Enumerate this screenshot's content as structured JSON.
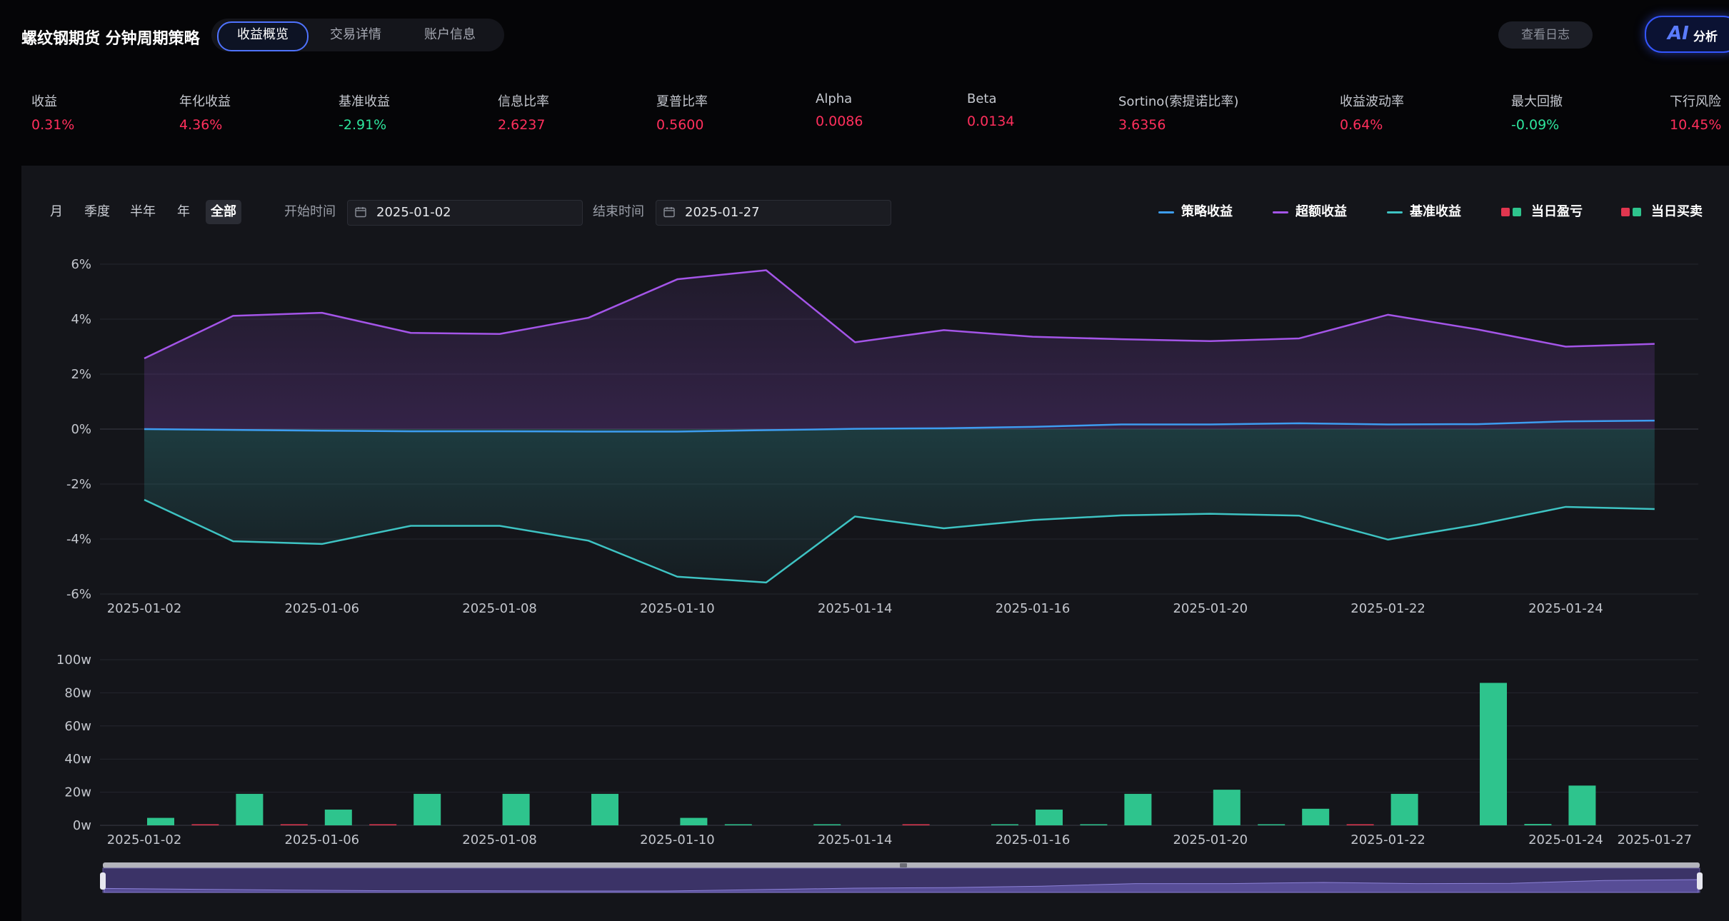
{
  "header": {
    "title": "螺纹钢期货 分钟周期策略",
    "tabs": [
      {
        "label": "收益概览",
        "active": true
      },
      {
        "label": "交易详情",
        "active": false
      },
      {
        "label": "账户信息",
        "active": false
      }
    ],
    "log_button": "查看日志",
    "ai_button": {
      "mark": "AI",
      "label": "分析"
    }
  },
  "colors": {
    "positive": "#ff2f5c",
    "negative": "#2ee59d",
    "strategy": "#3d9df0",
    "excess": "#a455e8",
    "benchmark": "#3ec3c3",
    "bar_profit": "#2ec48d",
    "bar_loss": "#e0364f"
  },
  "metrics": [
    {
      "label": "收益",
      "value": "0.31%",
      "tone": "positive"
    },
    {
      "label": "年化收益",
      "value": "4.36%",
      "tone": "positive"
    },
    {
      "label": "基准收益",
      "value": "-2.91%",
      "tone": "negative"
    },
    {
      "label": "信息比率",
      "value": "2.6237",
      "tone": "positive"
    },
    {
      "label": "夏普比率",
      "value": "0.5600",
      "tone": "positive"
    },
    {
      "label": "Alpha",
      "value": "0.0086",
      "tone": "positive"
    },
    {
      "label": "Beta",
      "value": "0.0134",
      "tone": "positive"
    },
    {
      "label": "Sortino(索提诺比率)",
      "value": "3.6356",
      "tone": "positive"
    },
    {
      "label": "收益波动率",
      "value": "0.64%",
      "tone": "positive"
    },
    {
      "label": "最大回撤",
      "value": "-0.09%",
      "tone": "negative"
    },
    {
      "label": "下行风险",
      "value": "10.45%",
      "tone": "positive"
    }
  ],
  "filters": {
    "periods": [
      {
        "label": "月",
        "active": false
      },
      {
        "label": "季度",
        "active": false
      },
      {
        "label": "半年",
        "active": false
      },
      {
        "label": "年",
        "active": false
      },
      {
        "label": "全部",
        "active": true
      }
    ],
    "start_label": "开始时间",
    "start_value": "2025-01-02",
    "end_label": "结束时间",
    "end_value": "2025-01-27"
  },
  "legend": {
    "strategy": "策略收益",
    "excess": "超额收益",
    "benchmark": "基准收益",
    "daily_pnl": "当日盈亏",
    "daily_trade": "当日买卖"
  },
  "chart_data": [
    {
      "type": "line",
      "x": [
        "2025-01-02",
        "2025-01-03",
        "2025-01-06",
        "2025-01-07",
        "2025-01-08",
        "2025-01-09",
        "2025-01-10",
        "2025-01-13",
        "2025-01-14",
        "2025-01-15",
        "2025-01-16",
        "2025-01-17",
        "2025-01-20",
        "2025-01-21",
        "2025-01-22",
        "2025-01-23",
        "2025-01-24",
        "2025-01-27"
      ],
      "xticks": [
        "2025-01-02",
        "2025-01-06",
        "2025-01-08",
        "2025-01-10",
        "2025-01-14",
        "2025-01-16",
        "2025-01-20",
        "2025-01-22",
        "2025-01-24"
      ],
      "yticks": [
        "-6%",
        "-4%",
        "-2%",
        "0%",
        "2%",
        "4%",
        "6%"
      ],
      "ylim": [
        -6,
        6
      ],
      "series": [
        {
          "key": "strategy",
          "values": [
            0.0,
            -0.03,
            -0.06,
            -0.08,
            -0.08,
            -0.09,
            -0.09,
            -0.04,
            0.01,
            0.03,
            0.08,
            0.17,
            0.17,
            0.21,
            0.17,
            0.18,
            0.28,
            0.31
          ]
        },
        {
          "key": "excess",
          "values": [
            2.57,
            4.12,
            4.23,
            3.5,
            3.46,
            4.05,
            5.45,
            5.78,
            3.16,
            3.6,
            3.36,
            3.27,
            3.2,
            3.3,
            4.16,
            3.63,
            3.0,
            3.1
          ]
        },
        {
          "key": "benchmark",
          "values": [
            -2.57,
            -4.08,
            -4.18,
            -3.52,
            -3.52,
            -4.06,
            -5.37,
            -5.58,
            -3.18,
            -3.61,
            -3.31,
            -3.14,
            -3.08,
            -3.15,
            -4.02,
            -3.48,
            -2.83,
            -2.91
          ]
        }
      ]
    },
    {
      "type": "bar",
      "x": [
        "2025-01-02",
        "2025-01-03",
        "2025-01-06",
        "2025-01-07",
        "2025-01-08",
        "2025-01-09",
        "2025-01-10",
        "2025-01-13",
        "2025-01-14",
        "2025-01-15",
        "2025-01-16",
        "2025-01-17",
        "2025-01-20",
        "2025-01-21",
        "2025-01-22",
        "2025-01-23",
        "2025-01-24",
        "2025-01-27"
      ],
      "xticks": [
        "2025-01-02",
        "2025-01-06",
        "2025-01-08",
        "2025-01-10",
        "2025-01-14",
        "2025-01-16",
        "2025-01-20",
        "2025-01-22",
        "2025-01-24",
        "2025-01-27"
      ],
      "yticks": [
        "0w",
        "20w",
        "40w",
        "60w",
        "80w",
        "100w"
      ],
      "ylim": [
        0,
        100
      ],
      "series": [
        {
          "key": "daily_pnl",
          "values": [
            0,
            -0.3,
            -0.3,
            -0.3,
            0,
            0,
            0,
            0.4,
            0.3,
            -0.3,
            0.3,
            0.5,
            0,
            0.3,
            -0.5,
            0,
            0.8,
            0
          ]
        },
        {
          "key": "daily_trade",
          "values": [
            4.5,
            19,
            9.5,
            19,
            19,
            19,
            4.5,
            0,
            0,
            0,
            9.5,
            19,
            21.5,
            10,
            19,
            86,
            24,
            0
          ]
        }
      ]
    }
  ]
}
